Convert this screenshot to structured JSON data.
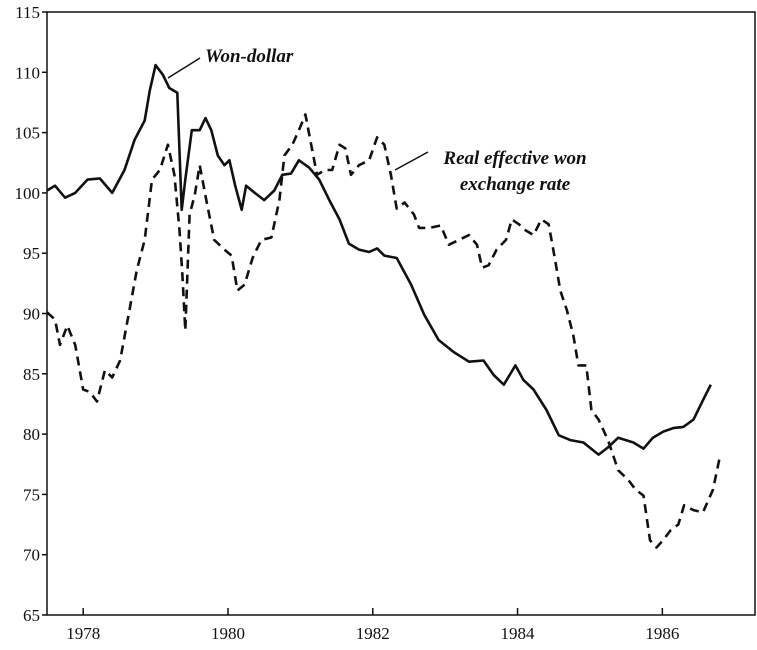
{
  "chart_data": {
    "type": "line",
    "xlim": [
      1977.5,
      1987.28
    ],
    "xticks": [
      1978,
      1980,
      1982,
      1984,
      1986
    ],
    "ylim": [
      65,
      115
    ],
    "yticks": [
      65,
      70,
      75,
      80,
      85,
      90,
      95,
      100,
      105,
      110,
      115
    ],
    "series": [
      {
        "name": "Won-dollar",
        "color": "#111111",
        "style": "solid",
        "x": [
          1977.5,
          1977.61,
          1977.75,
          1977.89,
          1978.06,
          1978.23,
          1978.4,
          1978.57,
          1978.71,
          1978.85,
          1978.92,
          1979.0,
          1979.1,
          1979.19,
          1979.3,
          1979.36,
          1979.41,
          1979.5,
          1979.61,
          1979.69,
          1979.77,
          1979.86,
          1979.95,
          1980.02,
          1980.1,
          1980.19,
          1980.25,
          1980.37,
          1980.5,
          1980.64,
          1980.75,
          1980.87,
          1980.98,
          1981.12,
          1981.26,
          1981.4,
          1981.54,
          1981.67,
          1981.81,
          1981.95,
          1982.06,
          1982.16,
          1982.33,
          1982.53,
          1982.71,
          1982.91,
          1983.12,
          1983.33,
          1983.53,
          1983.67,
          1983.81,
          1983.97,
          1984.08,
          1984.22,
          1984.4,
          1984.57,
          1984.73,
          1984.91,
          1985.12,
          1985.25,
          1985.39,
          1985.6,
          1985.74,
          1985.87,
          1986.01,
          1986.15,
          1986.29,
          1986.43,
          1986.56,
          1986.67
        ],
        "values": [
          100.2,
          100.6,
          99.6,
          100.0,
          101.1,
          101.2,
          100.0,
          101.9,
          104.4,
          106.0,
          108.5,
          110.6,
          109.8,
          108.7,
          108.3,
          98.6,
          101.1,
          105.2,
          105.2,
          106.2,
          105.2,
          103.1,
          102.3,
          102.7,
          100.6,
          98.6,
          100.6,
          100.0,
          99.4,
          100.2,
          101.5,
          101.6,
          102.7,
          102.1,
          101.1,
          99.4,
          97.8,
          95.8,
          95.3,
          95.1,
          95.4,
          94.8,
          94.6,
          92.4,
          89.9,
          87.8,
          86.8,
          86.0,
          86.1,
          84.9,
          84.1,
          85.7,
          84.5,
          83.7,
          82.0,
          79.9,
          79.5,
          79.3,
          78.3,
          78.9,
          79.7,
          79.3,
          78.8,
          79.7,
          80.2,
          80.5,
          80.6,
          81.2,
          82.8,
          84.1
        ]
      },
      {
        "name": "Real effective won exchange rate",
        "color": "#111111",
        "style": "dashed",
        "x": [
          1977.5,
          1977.61,
          1977.68,
          1977.78,
          1977.89,
          1978.0,
          1978.09,
          1978.19,
          1978.3,
          1978.4,
          1978.51,
          1978.64,
          1978.74,
          1978.85,
          1978.95,
          1979.06,
          1979.17,
          1979.26,
          1979.33,
          1979.37,
          1979.41,
          1979.47,
          1979.54,
          1979.61,
          1979.7,
          1979.81,
          1979.95,
          1980.05,
          1980.13,
          1980.23,
          1980.34,
          1980.46,
          1980.6,
          1980.71,
          1980.78,
          1980.89,
          1980.98,
          1981.07,
          1981.15,
          1981.23,
          1981.34,
          1981.44,
          1981.54,
          1981.62,
          1981.7,
          1981.81,
          1981.95,
          1982.06,
          1982.16,
          1982.25,
          1982.33,
          1982.44,
          1982.57,
          1982.64,
          1982.78,
          1982.94,
          1983.05,
          1983.19,
          1983.33,
          1983.44,
          1983.51,
          1983.6,
          1983.71,
          1983.84,
          1983.92,
          1984.02,
          1984.11,
          1984.22,
          1984.33,
          1984.43,
          1984.52,
          1984.59,
          1984.68,
          1984.77,
          1984.84,
          1984.95,
          1985.02,
          1985.12,
          1985.25,
          1985.39,
          1985.53,
          1985.63,
          1985.74,
          1985.83,
          1985.92,
          1986.01,
          1986.11,
          1986.22,
          1986.3,
          1986.43,
          1986.56,
          1986.7,
          1986.8
        ],
        "values": [
          90.1,
          89.5,
          87.4,
          89.0,
          87.4,
          83.7,
          83.5,
          82.7,
          85.3,
          84.7,
          86.1,
          90.3,
          93.6,
          96.1,
          101.1,
          101.9,
          104.0,
          101.5,
          96.9,
          93.2,
          88.6,
          98.2,
          99.8,
          102.3,
          99.4,
          96.1,
          95.3,
          94.8,
          91.9,
          92.4,
          94.6,
          96.1,
          96.3,
          99.4,
          103.1,
          104.0,
          105.2,
          106.5,
          104.0,
          101.5,
          101.9,
          101.9,
          104.0,
          103.7,
          101.5,
          102.3,
          102.7,
          104.6,
          104.0,
          101.5,
          98.7,
          99.2,
          98.2,
          97.1,
          97.1,
          97.3,
          95.7,
          96.1,
          96.5,
          95.7,
          93.8,
          94.0,
          95.3,
          96.1,
          97.8,
          97.4,
          96.9,
          96.5,
          97.8,
          97.4,
          94.4,
          91.9,
          90.3,
          88.2,
          85.7,
          85.7,
          82.0,
          81.2,
          79.5,
          77.0,
          76.2,
          75.4,
          74.9,
          71.2,
          70.6,
          71.2,
          72.0,
          72.5,
          74.1,
          73.7,
          73.5,
          75.4,
          78.3
        ]
      }
    ]
  }
}
